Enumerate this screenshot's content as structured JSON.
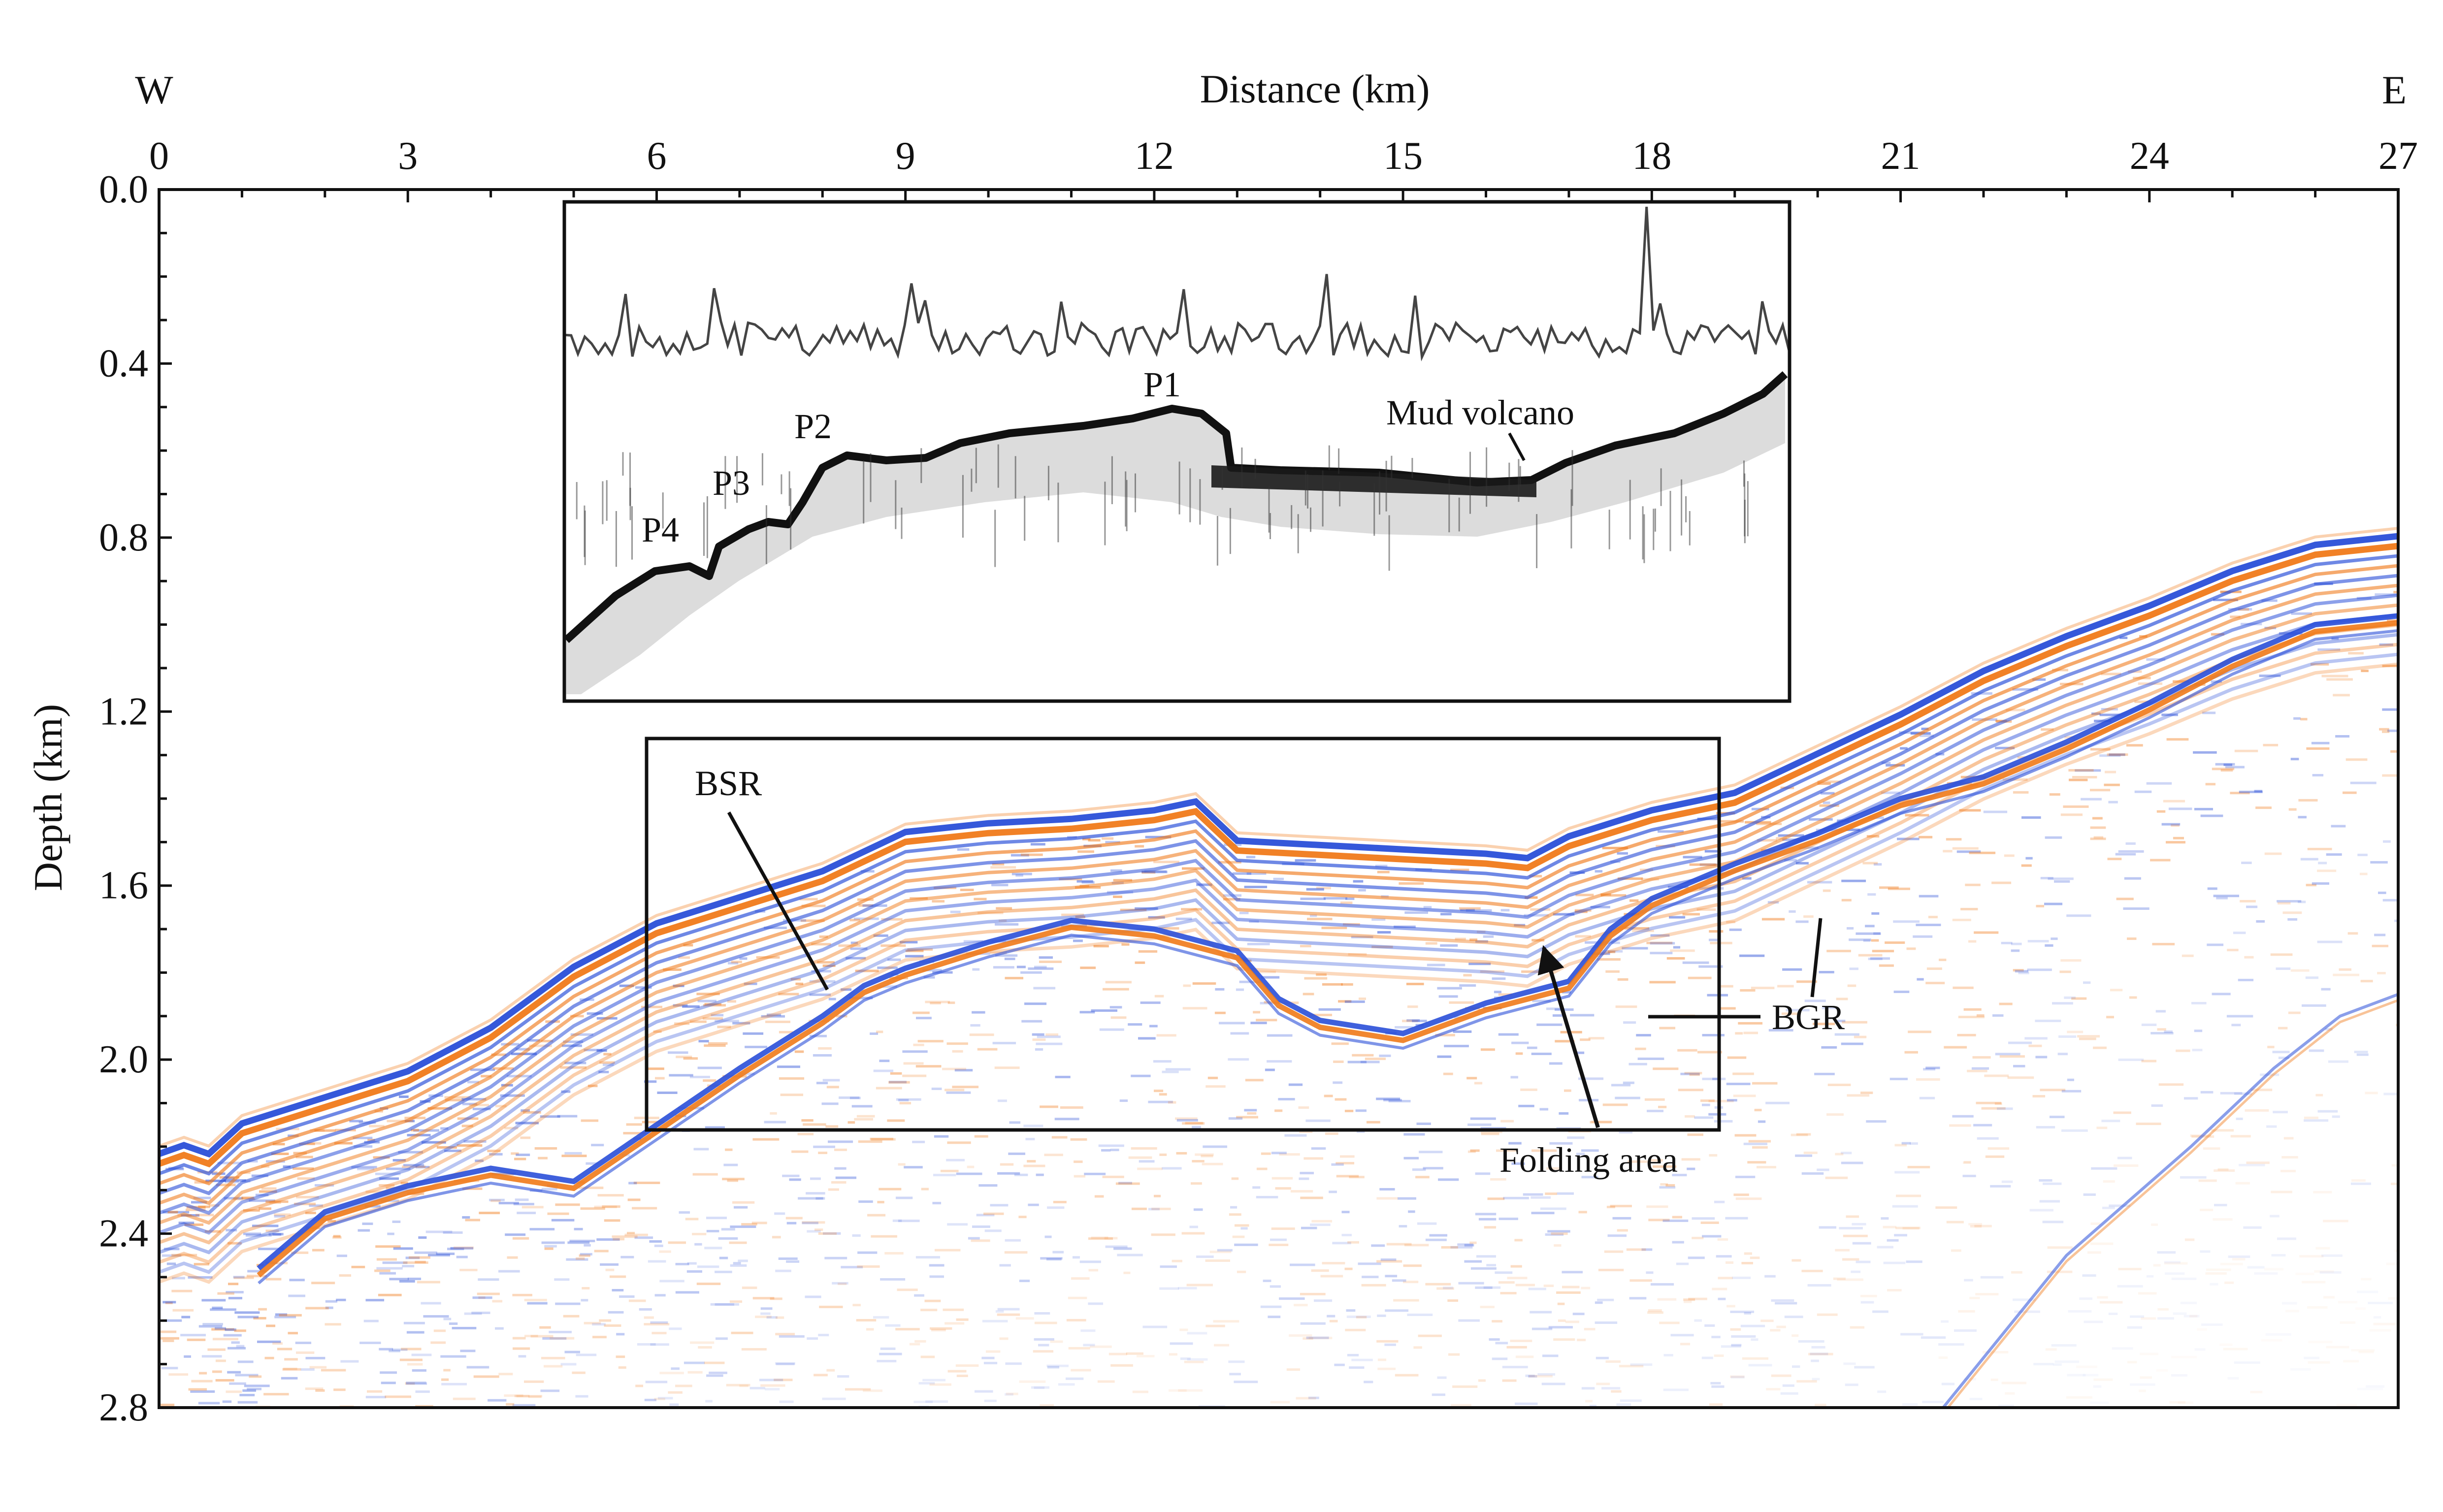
{
  "figure": {
    "x_axis": {
      "label": "Distance (km)",
      "left_end": "W",
      "right_end": "E",
      "range": [
        0,
        27
      ],
      "major_ticks": [
        0,
        3,
        6,
        9,
        12,
        15,
        18,
        21,
        24,
        27
      ],
      "minor_step": 1
    },
    "y_axis": {
      "label": "Depth (km)",
      "range": [
        0.0,
        2.8
      ],
      "inverted": true,
      "major_ticks": [
        "0.0",
        "0.4",
        "0.8",
        "1.2",
        "1.6",
        "2.0",
        "2.4",
        "2.8"
      ],
      "minor_step": 0.1
    },
    "annotations": {
      "bsr": "BSR",
      "bgr": "BGR",
      "folding_area": "Folding area",
      "mud_volcano": "Mud volcano",
      "p1": "P1",
      "p2": "P2",
      "p3": "P3",
      "p4": "P4"
    },
    "colors": {
      "seismic_blue": "#2a4fd8",
      "seismic_orange": "#f07a1a",
      "frame": "#111111",
      "inset_trace": "#444444"
    }
  }
}
